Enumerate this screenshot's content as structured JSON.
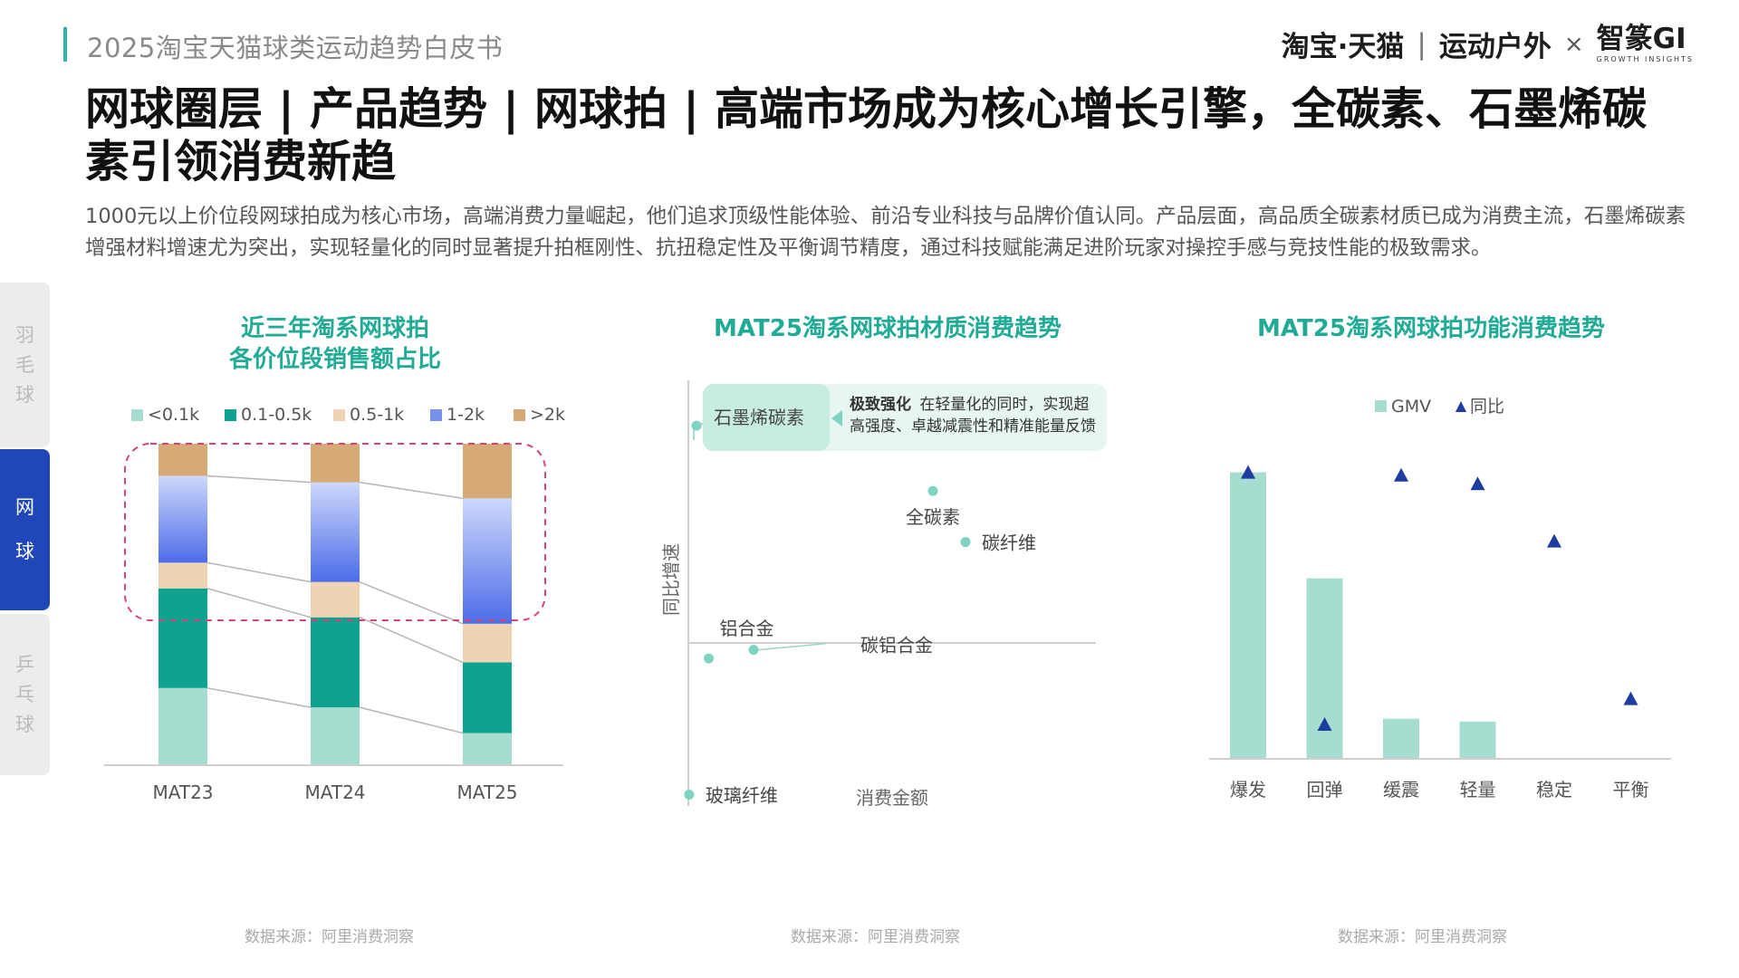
{
  "header": {
    "report_name": "2025淘宝天猫球类运动趋势白皮书",
    "brand_taobao": "淘宝·天猫",
    "brand_divider": "|",
    "brand_sports": "运动户外",
    "brand_times": "×",
    "brand_gi": "智篆GI",
    "brand_gi_sub": "GROWTH  INSIGHTS"
  },
  "headline": "网球圈层 | 产品趋势 | 网球拍 | 高端市场成为核心增长引擎，全碳素、石墨烯碳素引领消费新趋",
  "description": "1000元以上价位段网球拍成为核心市场，高端消费力量崛起，他们追求顶级性能体验、前沿专业科技与品牌价值认同。产品层面，高品质全碳素材质已成为消费主流，石墨烯碳素增强材料增速尤为突出，实现轻量化的同时显著提升拍框刚性、抗扭稳定性及平衡调节精度，通过科技赋能满足进阶玩家对操控手感与竞技性能的极致需求。",
  "side_tabs": {
    "tab1": [
      "羽",
      "毛",
      "球"
    ],
    "tab2": [
      "网",
      "球"
    ],
    "tab3": [
      "乒",
      "乓",
      "球"
    ]
  },
  "chart_data": [
    {
      "type": "bar",
      "stacked": true,
      "normalized": true,
      "title": "近三年淘系网球拍\n各价位段销售额占比",
      "title_line1": "近三年淘系网球拍",
      "title_line2": "各价位段销售额占比",
      "categories": [
        "MAT23",
        "MAT24",
        "MAT25"
      ],
      "series": [
        {
          "name": "<0.1k",
          "color": "#a6ddd0",
          "values": [
            24,
            18,
            10
          ]
        },
        {
          "name": "0.1-0.5k",
          "color": "#0fa38f",
          "values": [
            31,
            28,
            22
          ]
        },
        {
          "name": "0.5-1k",
          "color": "#eed3b4",
          "values": [
            8,
            11,
            12
          ]
        },
        {
          "name": "1-2k",
          "color": "#7891ee",
          "values": [
            27,
            31,
            39
          ]
        },
        {
          "name": ">2k",
          "color": "#d6aa77",
          "values": [
            10,
            12,
            17
          ]
        }
      ],
      "highlight": "dashed box around 0.5-1k, 1-2k and >2k segments",
      "ylim": [
        0,
        100
      ],
      "grid": false,
      "legend": "top",
      "source": "数据来源：阿里消费洞察"
    },
    {
      "type": "scatter",
      "title": "MAT25淘系网球拍材质消费趋势",
      "xlabel": "消费金额",
      "ylabel": "同比增速",
      "xlim": [
        0,
        10
      ],
      "ylim": [
        -5,
        10
      ],
      "points": [
        {
          "label": "石墨烯碳素",
          "x": 0.2,
          "y": 8.4
        },
        {
          "label": "全碳素",
          "x": 6.0,
          "y": 6.1
        },
        {
          "label": "碳纤维",
          "x": 6.8,
          "y": 4.3
        },
        {
          "label": "铝合金",
          "x": 0.5,
          "y": 0.2
        },
        {
          "label": "碳铝合金",
          "x": 1.6,
          "y": 0.5
        },
        {
          "label": "玻璃纤维",
          "x": 0.02,
          "y": -4.6
        }
      ],
      "callout": {
        "bold": "极致强化",
        "line1": "在轻量化的同时，实现超",
        "line2": "高强度、卓越减震性和精准能量反馈"
      },
      "source": "数据来源：阿里消费洞察"
    },
    {
      "type": "bar",
      "title": "MAT25淘系网球拍功能消费趋势",
      "categories": [
        "爆发",
        "回弹",
        "缓震",
        "轻量",
        "稳定",
        "平衡"
      ],
      "series": [
        {
          "name": "GMV",
          "color": "#a6ddd0",
          "values": [
            100,
            63,
            14,
            13,
            0,
            0
          ]
        },
        {
          "name": "同比",
          "color": "#1f3ca0",
          "marker": "triangle",
          "values": [
            100,
            12,
            99,
            96,
            76,
            21
          ]
        }
      ],
      "ylim": [
        0,
        110
      ],
      "legend": "top",
      "grid": false,
      "source": "数据来源：阿里消费洞察"
    }
  ]
}
